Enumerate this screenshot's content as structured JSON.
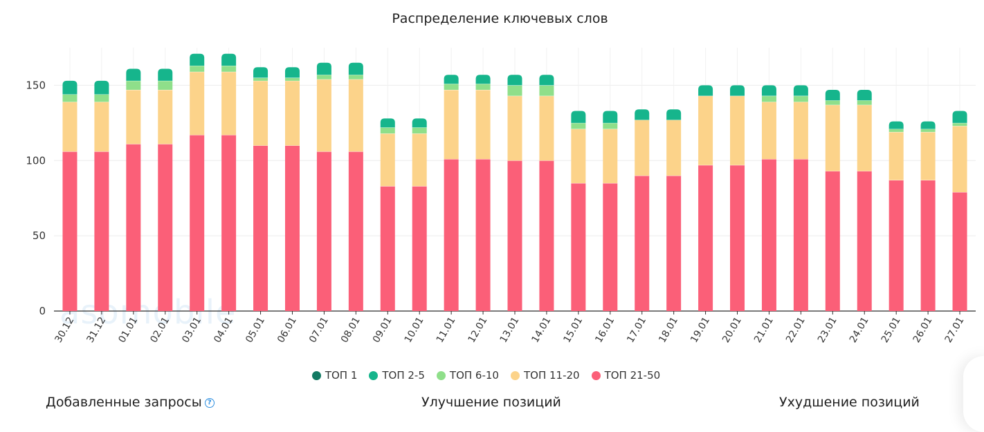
{
  "colors": {
    "top1": "#137a63",
    "top2_5": "#16b58c",
    "top6_10": "#8fdf8a",
    "top11_20": "#fcd38a",
    "top21_50": "#fb5f78"
  },
  "chart_data": {
    "type": "bar",
    "stacked": true,
    "title": "Распределение ключевых слов",
    "categories": [
      "30.12",
      "31.12",
      "01.01",
      "02.01",
      "03.01",
      "04.01",
      "05.01",
      "06.01",
      "07.01",
      "08.01",
      "09.01",
      "10.01",
      "11.01",
      "12.01",
      "13.01",
      "14.01",
      "15.01",
      "16.01",
      "17.01",
      "18.01",
      "19.01",
      "20.01",
      "21.01",
      "22.01",
      "23.01",
      "24.01",
      "25.01",
      "26.01",
      "27.01"
    ],
    "series": [
      {
        "name": "ТОП 21-50",
        "color": "#fb5f78",
        "values": [
          106,
          106,
          111,
          111,
          117,
          117,
          110,
          110,
          106,
          106,
          83,
          83,
          101,
          101,
          100,
          100,
          85,
          85,
          90,
          90,
          97,
          97,
          101,
          101,
          93,
          93,
          87,
          87,
          79
        ]
      },
      {
        "name": "ТОП 11-20",
        "color": "#fcd38a",
        "values": [
          33,
          33,
          36,
          36,
          42,
          42,
          43,
          43,
          48,
          48,
          35,
          35,
          46,
          46,
          43,
          43,
          36,
          36,
          37,
          37,
          46,
          46,
          38,
          38,
          44,
          44,
          32,
          32,
          44
        ]
      },
      {
        "name": "ТОП 6-10",
        "color": "#8fdf8a",
        "values": [
          5,
          5,
          6,
          6,
          4,
          4,
          2,
          2,
          3,
          3,
          4,
          4,
          4,
          4,
          7,
          7,
          4,
          4,
          0,
          0,
          0,
          0,
          4,
          4,
          3,
          3,
          2,
          2,
          2
        ]
      },
      {
        "name": "ТОП 2-5",
        "color": "#16b58c",
        "values": [
          9,
          9,
          8,
          8,
          8,
          8,
          7,
          7,
          8,
          8,
          6,
          6,
          6,
          6,
          7,
          7,
          8,
          8,
          7,
          7,
          7,
          7,
          7,
          7,
          7,
          7,
          5,
          5,
          8
        ]
      },
      {
        "name": "ТОП 1",
        "color": "#137a63",
        "values": [
          0,
          0,
          0,
          0,
          0,
          0,
          0,
          0,
          0,
          0,
          0,
          0,
          0,
          0,
          0,
          0,
          0,
          0,
          0,
          0,
          0,
          0,
          0,
          0,
          0,
          0,
          0,
          0,
          0
        ]
      }
    ],
    "ylim": [
      0,
      175
    ],
    "yticks": [
      0,
      50,
      100,
      150
    ],
    "grid": true,
    "legend_position": "bottom"
  },
  "legend": [
    {
      "label": "ТОП 1",
      "color": "#137a63"
    },
    {
      "label": "ТОП 2-5",
      "color": "#16b58c"
    },
    {
      "label": "ТОП 6-10",
      "color": "#8fdf8a"
    },
    {
      "label": "ТОП 11-20",
      "color": "#fcd38a"
    },
    {
      "label": "ТОП 21-50",
      "color": "#fb5f78"
    }
  ],
  "sections": {
    "added": "Добавленные запросы",
    "improved": "Улучшение позиций",
    "worsened": "Ухудшение позиций"
  },
  "watermark": "asomobile",
  "icons": {
    "help": "question-circle-icon"
  }
}
